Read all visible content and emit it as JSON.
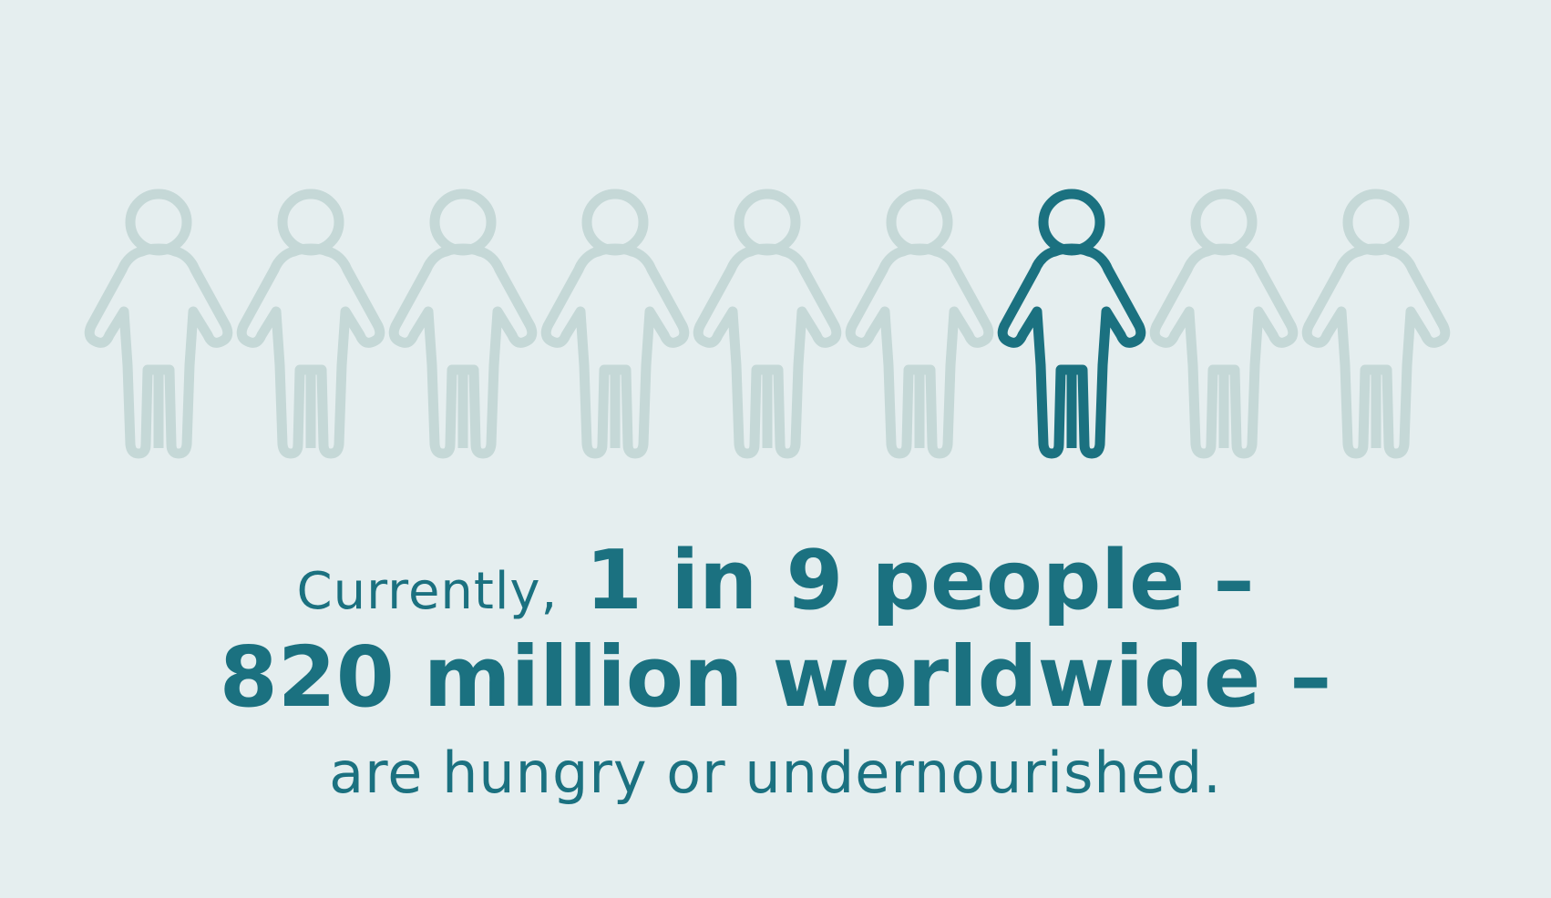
{
  "infographic": {
    "people_total": 9,
    "highlighted_index": 7,
    "colors": {
      "background": "#e5eeef",
      "highlight": "#1b7180",
      "muted": "#c5d8d7",
      "text": "#1b7180"
    },
    "icon": "person-outline-icon",
    "line1_lead": "Currently,",
    "line1_emphasis": "1 in 9 people –",
    "line2": "820 million worldwide –",
    "line3": "are hungry or undernourished."
  }
}
